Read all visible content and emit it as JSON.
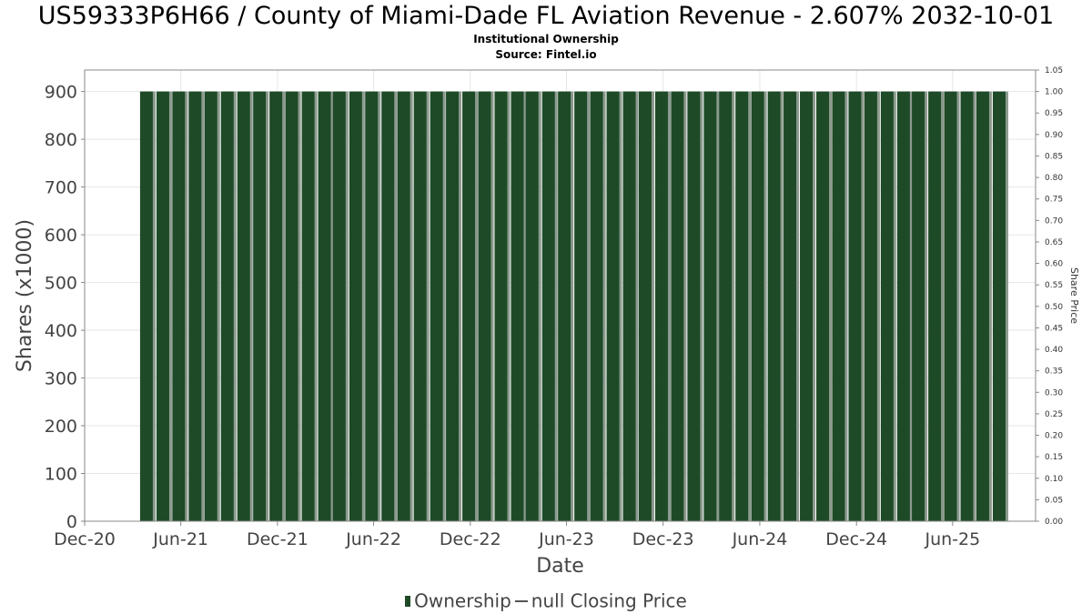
{
  "title": "US59333P6H66 / County of Miami-Dade FL Aviation Revenue - 2.607% 2032-10-01",
  "subtitle1": "Institutional Ownership",
  "subtitle2": "Source: Fintel.io",
  "legend": {
    "ownership": "Ownership",
    "price": "null Closing Price"
  },
  "colors": {
    "bar": "#1e4a28",
    "bar_shadow": "#8c9a8e",
    "axis": "#888888",
    "grid": "#e6e6e6"
  },
  "chart_data": {
    "type": "bar",
    "xlabel": "Date",
    "ylabel": "Shares (x1000)",
    "y2label": "Share Price",
    "ylim": [
      0,
      945
    ],
    "y2lim": [
      0,
      1.05
    ],
    "yticks": [
      "0",
      "100",
      "200",
      "300",
      "400",
      "500",
      "600",
      "700",
      "800",
      "900"
    ],
    "y2ticks": [
      "0.00",
      "0.05",
      "0.10",
      "0.15",
      "0.20",
      "0.25",
      "0.30",
      "0.35",
      "0.40",
      "0.45",
      "0.50",
      "0.55",
      "0.60",
      "0.65",
      "0.70",
      "0.75",
      "0.80",
      "0.85",
      "0.90",
      "0.95",
      "1.00",
      "1.05"
    ],
    "xticks": [
      "Dec-20",
      "Jun-21",
      "Dec-21",
      "Jun-22",
      "Dec-22",
      "Jun-23",
      "Dec-23",
      "Jun-24",
      "Dec-24",
      "Jun-25"
    ],
    "xlim": [
      "2020-12-01",
      "2025-11-05"
    ],
    "grid": true,
    "bar_count": 54,
    "bar_start": "2021-03-31",
    "bar_interval_months": 1,
    "series": [
      {
        "name": "Ownership",
        "values": [
          900,
          900,
          900,
          900,
          900,
          900,
          900,
          900,
          900,
          900,
          900,
          900,
          900,
          900,
          900,
          900,
          900,
          900,
          900,
          900,
          900,
          900,
          900,
          900,
          900,
          900,
          900,
          900,
          900,
          900,
          900,
          900,
          900,
          900,
          900,
          900,
          900,
          900,
          900,
          900,
          900,
          900,
          900,
          900,
          900,
          900,
          900,
          900,
          900,
          900,
          900,
          900,
          900,
          900
        ]
      }
    ]
  }
}
